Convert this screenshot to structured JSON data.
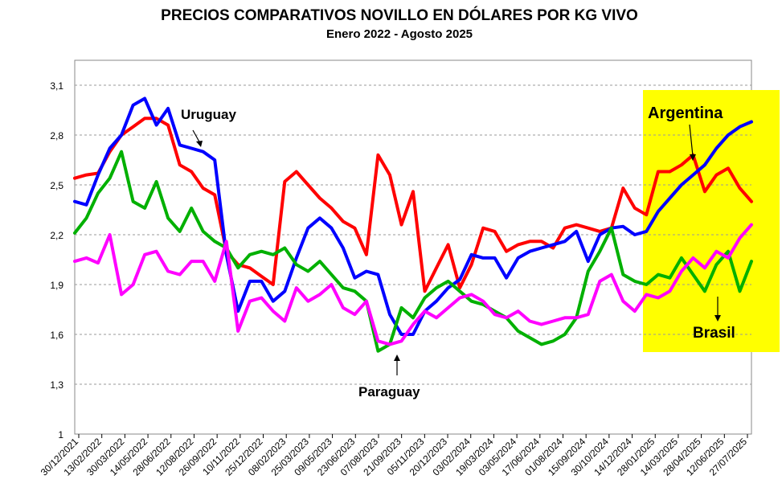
{
  "chart_data": {
    "type": "line",
    "title": "PRECIOS COMPARATIVOS NOVILLO EN DÓLARES POR KG  VIVO",
    "subtitle": "Enero  2022 -  Agosto 2025",
    "xlabel": "",
    "ylabel": "",
    "ylim": [
      1,
      3.25
    ],
    "y_ticks": [
      "3,1",
      "2,8",
      "2,5",
      "2,2",
      "1,9",
      "1,6",
      "1,3",
      "1"
    ],
    "y_tick_values": [
      3.1,
      2.8,
      2.5,
      2.2,
      1.9,
      1.6,
      1.3,
      1.0
    ],
    "grid": true,
    "x_tick_labels": [
      "30/12/2021",
      "13/02/2022",
      "30/03/2022",
      "14/05/2022",
      "28/06/2022",
      "12/08/2022",
      "26/09/2022",
      "10/11/2022",
      "25/12/2022",
      "08/02/2023",
      "25/03/2023",
      "09/05/2023",
      "23/06/2023",
      "07/08/2023",
      "21/09/2023",
      "05/11/2023",
      "20/12/2023",
      "03/02/2024",
      "19/03/2024",
      "03/05/2024",
      "17/06/2024",
      "01/08/2024",
      "15/09/2024",
      "30/10/2024",
      "14/12/2024",
      "28/01/2025",
      "14/03/2025",
      "28/04/2025",
      "12/06/2025",
      "27/07/2025"
    ],
    "x": [
      0,
      1,
      2,
      3,
      4,
      5,
      6,
      7,
      8,
      9,
      10,
      11,
      12,
      13,
      14,
      15,
      16,
      17,
      18,
      19,
      20,
      21,
      22,
      23,
      24,
      25,
      26,
      27,
      28,
      29,
      30,
      31,
      32,
      33,
      34,
      35,
      36,
      37,
      38,
      39,
      40,
      41,
      42,
      43,
      44,
      45,
      46,
      47,
      48,
      49,
      50,
      51,
      52,
      53,
      54,
      55,
      56,
      57,
      58
    ],
    "series": [
      {
        "name": "Argentina",
        "color": "#ff0000",
        "values": [
          2.54,
          2.56,
          2.57,
          2.7,
          2.8,
          2.85,
          2.9,
          2.9,
          2.86,
          2.62,
          2.58,
          2.48,
          2.44,
          2.1,
          2.02,
          2.0,
          1.95,
          1.9,
          2.52,
          2.58,
          2.5,
          2.42,
          2.36,
          2.28,
          2.24,
          2.08,
          2.68,
          2.56,
          2.26,
          2.46,
          1.86,
          2.0,
          2.14,
          1.88,
          2.02,
          2.24,
          2.22,
          2.1,
          2.14,
          2.16,
          2.16,
          2.12,
          2.24,
          2.26,
          2.24,
          2.22,
          2.24,
          2.48,
          2.36,
          2.32,
          2.58,
          2.58,
          2.62,
          2.68,
          2.46,
          2.56,
          2.6,
          2.48,
          2.4
        ]
      },
      {
        "name": "Uruguay",
        "color": "#0000ff",
        "values": [
          2.4,
          2.38,
          2.56,
          2.72,
          2.8,
          2.98,
          3.02,
          2.86,
          2.96,
          2.74,
          2.72,
          2.7,
          2.65,
          2.08,
          1.74,
          1.92,
          1.92,
          1.8,
          1.86,
          2.06,
          2.24,
          2.3,
          2.24,
          2.12,
          1.94,
          1.98,
          1.96,
          1.72,
          1.6,
          1.6,
          1.74,
          1.8,
          1.88,
          1.93,
          2.08,
          2.06,
          2.06,
          1.94,
          2.06,
          2.1,
          2.12,
          2.14,
          2.16,
          2.22,
          2.04,
          2.2,
          2.24,
          2.25,
          2.2,
          2.22,
          2.34,
          2.42,
          2.5,
          2.56,
          2.62,
          2.72,
          2.8,
          2.85,
          2.88
        ]
      },
      {
        "name": "Paraguay",
        "color": "#00b000",
        "values": [
          2.21,
          2.3,
          2.45,
          2.54,
          2.7,
          2.4,
          2.36,
          2.52,
          2.3,
          2.22,
          2.36,
          2.22,
          2.16,
          2.12,
          2.0,
          2.08,
          2.1,
          2.08,
          2.12,
          2.02,
          1.98,
          2.04,
          1.96,
          1.88,
          1.86,
          1.8,
          1.5,
          1.54,
          1.76,
          1.7,
          1.82,
          1.88,
          1.92,
          1.86,
          1.8,
          1.78,
          1.74,
          1.7,
          1.62,
          1.58,
          1.54,
          1.56,
          1.6,
          1.7,
          1.98,
          2.1,
          2.24,
          1.96,
          1.92,
          1.9,
          1.96,
          1.94,
          2.06,
          1.96,
          1.86,
          2.02,
          2.1,
          1.86,
          2.04
        ]
      },
      {
        "name": "Brasil",
        "color": "#ff00ff",
        "values": [
          2.04,
          2.06,
          2.03,
          2.2,
          1.84,
          1.9,
          2.08,
          2.1,
          1.98,
          1.96,
          2.04,
          2.04,
          1.92,
          2.16,
          1.62,
          1.8,
          1.82,
          1.74,
          1.68,
          1.88,
          1.8,
          1.84,
          1.9,
          1.76,
          1.72,
          1.8,
          1.56,
          1.54,
          1.56,
          1.66,
          1.74,
          1.7,
          1.76,
          1.82,
          1.84,
          1.8,
          1.72,
          1.7,
          1.74,
          1.68,
          1.66,
          1.68,
          1.7,
          1.7,
          1.72,
          1.92,
          1.96,
          1.8,
          1.74,
          1.84,
          1.82,
          1.86,
          1.98,
          2.06,
          2.0,
          2.1,
          2.06,
          2.18,
          2.26
        ]
      }
    ],
    "annotations": {
      "uruguay": "Uruguay",
      "argentina": "Argentina",
      "paraguay": "Paraguay",
      "brasil": "Brasil"
    },
    "highlight_color": "#ffff00"
  }
}
